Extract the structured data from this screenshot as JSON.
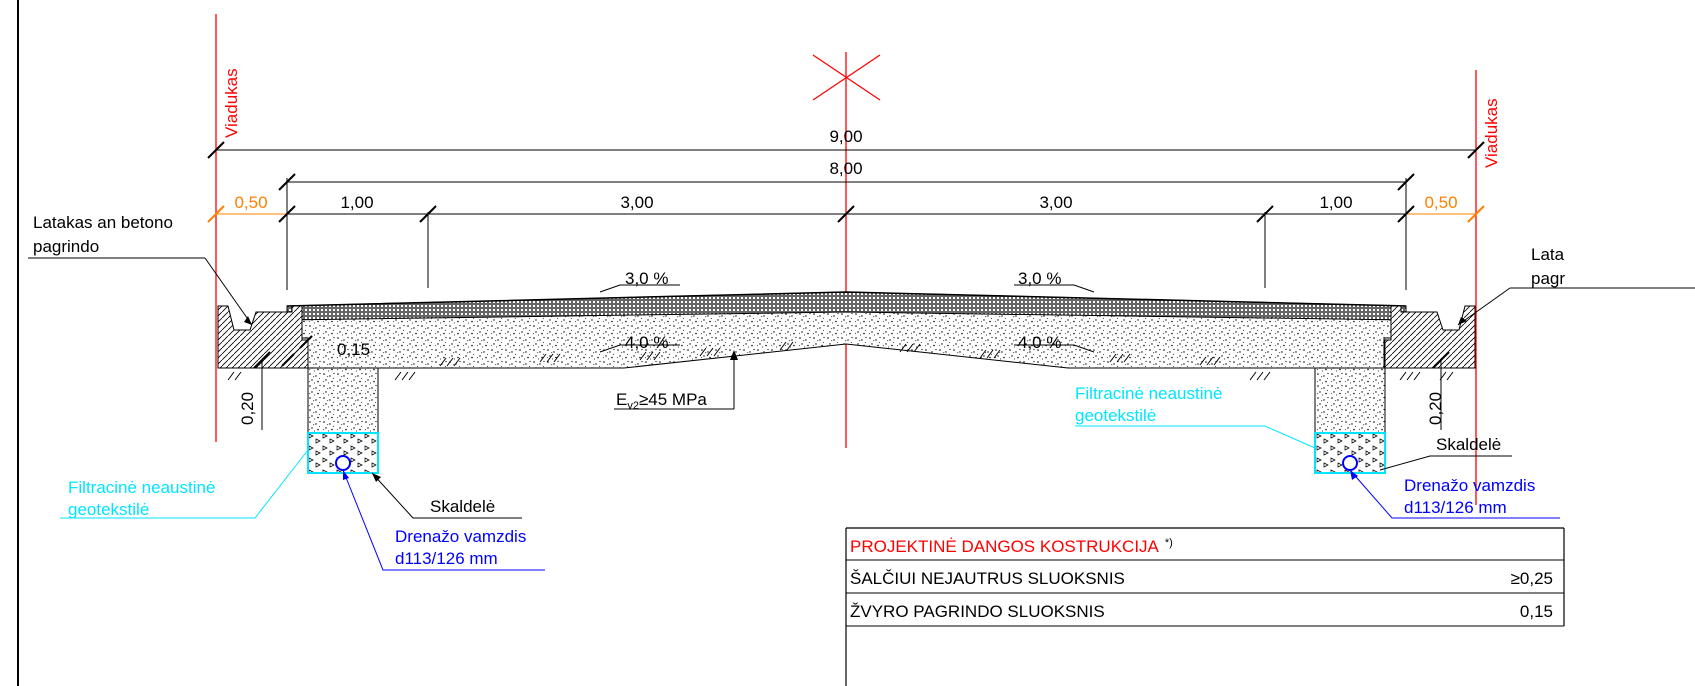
{
  "colors": {
    "axis_red": "#ff0000",
    "orange": "#ff8000",
    "cyan": "#00e5ff",
    "blue": "#0000ff",
    "black": "#000000"
  },
  "labels": {
    "viaduct_left": "Viadukas",
    "viaduct_right": "Viadukas",
    "total_width": "9,00",
    "carriageway_width": "8,00",
    "offset_left": "0,50",
    "offset_right": "0,50",
    "shoulder_left": "1,00",
    "lane_left": "3,00",
    "lane_right": "3,00",
    "shoulder_right": "1,00",
    "slope_surface_left": "3,0 %",
    "slope_surface_right": "3,0 %",
    "slope_base_left": "4,0 %",
    "slope_base_right": "4,0 %",
    "base_thickness": "0,15",
    "trench_depth_left": "0,20",
    "trench_depth_right": "0,20",
    "gutter_left_line1": "Latakas an betono",
    "gutter_left_line2": "pagrindo",
    "gutter_right_line1": "Lata",
    "gutter_right_line2": "pagr",
    "ev2_main": "E",
    "ev2_sub": "v2",
    "ev2_rest": "≥45 MPa",
    "geotextile_left_line1": "Filtracinė neaustinė",
    "geotextile_left_line2": "geotekstilė",
    "geotextile_right_line1": "Filtracinė neaustinė",
    "geotextile_right_line2": "geotekstilė",
    "gravel_left": "Skaldelė",
    "gravel_right": "Skaldelė",
    "drain_left_line1": "Drenažo vamzdis",
    "drain_left_line2": "d113/126 mm",
    "drain_right_line1": "Drenažo vamzdis",
    "drain_right_line2": "d113/126 mm"
  },
  "table": {
    "title": "PROJEKTINĖ DANGOS KOSTRUKCIJA",
    "title_note": "*)",
    "rows": [
      {
        "name": "ŠALČIUI NEJAUTRUS SLUOKSNIS",
        "value": "≥0,25"
      },
      {
        "name": "ŽVYRO PAGRINDO SLUOKSNIS",
        "value": "0,15"
      }
    ]
  }
}
